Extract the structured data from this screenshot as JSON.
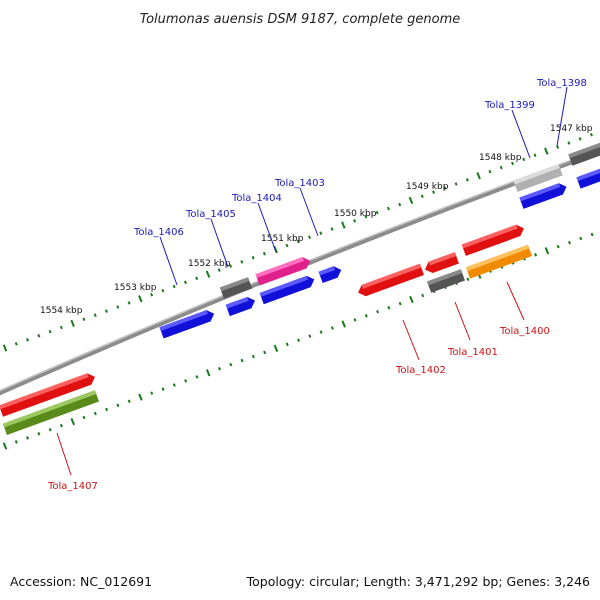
{
  "title": "Tolumonas auensis DSM 9187, complete genome",
  "footer": {
    "accession": "Accession: NC_012691",
    "summary": "Topology: circular; Length: 3,471,292 bp; Genes: 3,246"
  },
  "scale_labels": [
    "1547 kbp",
    "1548 kbp",
    "1549 kbp",
    "1550 kbp",
    "1551 kbp",
    "1552 kbp",
    "1553 kbp",
    "1554 kbp"
  ],
  "genes": {
    "Tola_1398": "Tola_1398",
    "Tola_1399": "Tola_1399",
    "Tola_1400": "Tola_1400",
    "Tola_1401": "Tola_1401",
    "Tola_1402": "Tola_1402",
    "Tola_1403": "Tola_1403",
    "Tola_1404": "Tola_1404",
    "Tola_1405": "Tola_1405",
    "Tola_1406": "Tola_1406",
    "Tola_1407": "Tola_1407"
  },
  "colors": {
    "blue": "#1010d8",
    "red": "#e01010",
    "gray": "#606060",
    "lightgray": "#b8b8b8",
    "magenta": "#e0208c",
    "orange": "#f08a00",
    "olive": "#5a8a1a",
    "tick": "#1a7a1a",
    "backbone": "#7a7a7a"
  }
}
